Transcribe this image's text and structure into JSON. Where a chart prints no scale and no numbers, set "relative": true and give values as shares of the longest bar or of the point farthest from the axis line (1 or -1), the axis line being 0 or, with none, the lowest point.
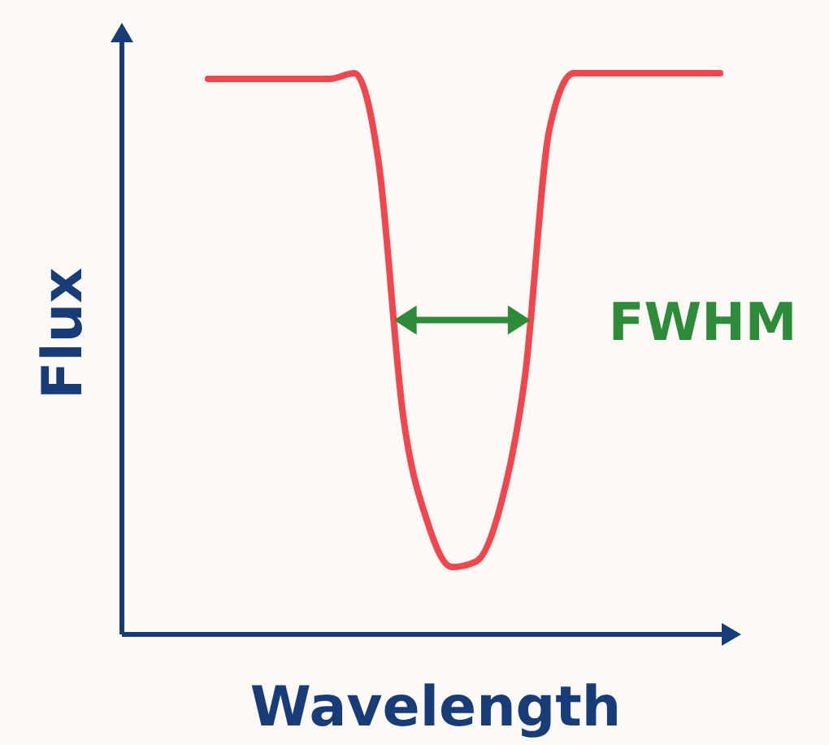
{
  "chart_data": {
    "type": "line",
    "relative": true,
    "xlabel": "Wavelength",
    "ylabel": "Flux",
    "categories": [
      null,
      null,
      null,
      null,
      null,
      null,
      null,
      null,
      null,
      null,
      null,
      null,
      null,
      null,
      null,
      null,
      null,
      null,
      null,
      null,
      null,
      null
    ],
    "series": [
      {
        "color": "#f0474f",
        "values": [
          0.99,
          0.99,
          0.99,
          0.99,
          0.99,
          0.99,
          1.0,
          0.84,
          0.39,
          0.2,
          0.12,
          0.13,
          0.23,
          0.46,
          0.9,
          1.0,
          1.0,
          1.0,
          1.0,
          1.0,
          1.0,
          1.0
        ]
      }
    ],
    "annotations": [
      "FWHM"
    ]
  }
}
